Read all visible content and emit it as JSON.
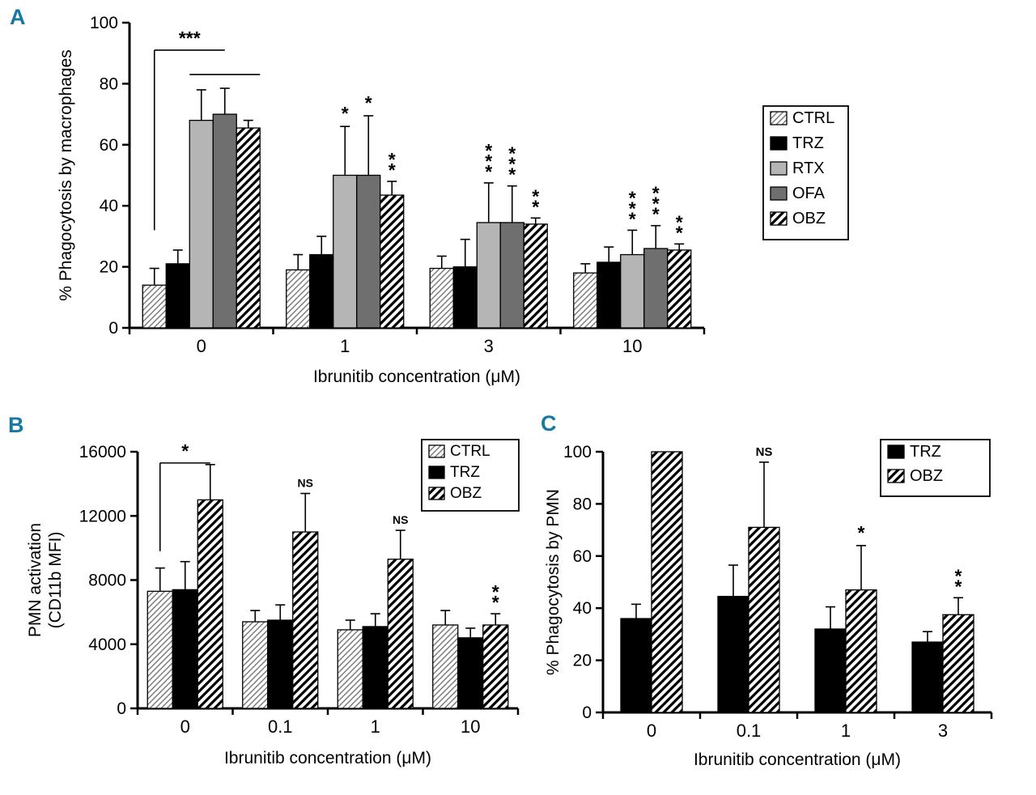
{
  "colors": {
    "panel_label": "#1878a0",
    "bar_black": "#000000",
    "bar_lightgray": "#b5b5b5",
    "bar_darkgray": "#6f6f6f",
    "hatch_fine_line": "#777777",
    "hatch_bold_line": "#000000",
    "axis": "#000000"
  },
  "chart_data": [
    {
      "panel_label": "A",
      "type": "bar",
      "title": "",
      "ylabel": "% Phagocytosis by macrophages",
      "xlabel": "Ibrunitib concentration (μM)",
      "categories": [
        "0",
        "1",
        "3",
        "10"
      ],
      "ylim": [
        0,
        100
      ],
      "yticks": [
        0,
        20,
        40,
        60,
        80,
        100
      ],
      "grid": false,
      "legend_position": "outside-right",
      "series": [
        {
          "name": "CTRL",
          "fill": "hatch-fine",
          "values": [
            14,
            19,
            19.5,
            18
          ],
          "errors": [
            5.5,
            5,
            4,
            3
          ]
        },
        {
          "name": "TRZ",
          "fill": "black",
          "values": [
            21,
            24,
            20,
            21.5
          ],
          "errors": [
            4.5,
            6,
            9,
            5
          ]
        },
        {
          "name": "RTX",
          "fill": "lightgray",
          "values": [
            68,
            50,
            34.5,
            24
          ],
          "errors": [
            10,
            16,
            13,
            8
          ]
        },
        {
          "name": "OFA",
          "fill": "darkgray",
          "values": [
            70,
            50,
            34.5,
            26
          ],
          "errors": [
            8.5,
            19.5,
            12,
            7.5
          ]
        },
        {
          "name": "OBZ",
          "fill": "hatch-bold",
          "values": [
            65.5,
            43.5,
            34,
            25.5
          ],
          "errors": [
            2.5,
            4.5,
            2,
            2
          ]
        }
      ],
      "annotations": {
        "stars": [
          {
            "group": 1,
            "series": 2,
            "text": "*"
          },
          {
            "group": 1,
            "series": 3,
            "text": "*"
          },
          {
            "group": 1,
            "series": 4,
            "text": "**",
            "stacked": true
          },
          {
            "group": 2,
            "series": 2,
            "text": "***",
            "stacked": true
          },
          {
            "group": 2,
            "series": 3,
            "text": "***",
            "stacked": true
          },
          {
            "group": 2,
            "series": 4,
            "text": "**",
            "stacked": true
          },
          {
            "group": 3,
            "series": 2,
            "text": "***",
            "stacked": true
          },
          {
            "group": 3,
            "series": 3,
            "text": "***",
            "stacked": true
          },
          {
            "group": 3,
            "series": 4,
            "text": "**",
            "stacked": true
          }
        ],
        "bracket": {
          "group": 0,
          "from_series": 0,
          "to_series": 3,
          "y_from": 32,
          "y_top": 91,
          "label": "***",
          "subline": {
            "y": 83,
            "from_series": 2,
            "to_series": 4
          }
        }
      }
    },
    {
      "panel_label": "B",
      "type": "bar",
      "title": "",
      "ylabel": [
        "PMN activation",
        "(CD11b MFI)"
      ],
      "xlabel": "Ibrunitib concentration (μM)",
      "categories": [
        "0",
        "0.1",
        "1",
        "10"
      ],
      "ylim": [
        0,
        16000
      ],
      "yticks": [
        0,
        4000,
        8000,
        12000,
        16000
      ],
      "grid": false,
      "legend_position": "inside-top-right",
      "series": [
        {
          "name": "CTRL",
          "fill": "hatch-fine",
          "values": [
            7300,
            5400,
            4900,
            5200
          ],
          "errors": [
            1450,
            700,
            600,
            900
          ]
        },
        {
          "name": "TRZ",
          "fill": "black",
          "values": [
            7400,
            5500,
            5100,
            4400
          ],
          "errors": [
            1750,
            950,
            800,
            600
          ]
        },
        {
          "name": "OBZ",
          "fill": "hatch-bold",
          "values": [
            13000,
            11000,
            9300,
            5200
          ],
          "errors": [
            2200,
            2400,
            1800,
            700
          ]
        }
      ],
      "annotations": {
        "stars": [
          {
            "group": 1,
            "series": 2,
            "text": "NS",
            "ns": true
          },
          {
            "group": 2,
            "series": 2,
            "text": "NS",
            "ns": true
          },
          {
            "group": 3,
            "series": 2,
            "text": "**",
            "stacked": true
          }
        ],
        "bracket": {
          "group": 0,
          "from_series": 0,
          "to_series": 2,
          "y_from": 9800,
          "y_top": 15300,
          "label": "*"
        }
      }
    },
    {
      "panel_label": "C",
      "type": "bar",
      "title": "",
      "ylabel": "% Phagocytosis by PMN",
      "xlabel": "Ibrunitib concentration (μM)",
      "categories": [
        "0",
        "0.1",
        "1",
        "3"
      ],
      "ylim": [
        0,
        100
      ],
      "yticks": [
        0,
        20,
        40,
        60,
        80,
        100
      ],
      "grid": false,
      "legend_position": "inside-top-right",
      "series": [
        {
          "name": "TRZ",
          "fill": "black",
          "values": [
            36,
            44.5,
            32,
            27
          ],
          "errors": [
            5.5,
            12,
            8.5,
            4
          ]
        },
        {
          "name": "OBZ",
          "fill": "hatch-bold",
          "values": [
            100,
            71,
            47,
            37.5
          ],
          "errors": [
            0,
            25,
            17,
            6.5
          ]
        }
      ],
      "annotations": {
        "stars": [
          {
            "group": 1,
            "series": 1,
            "text": "NS",
            "ns": true
          },
          {
            "group": 2,
            "series": 1,
            "text": "*"
          },
          {
            "group": 3,
            "series": 1,
            "text": "**",
            "stacked": true
          }
        ]
      }
    }
  ]
}
